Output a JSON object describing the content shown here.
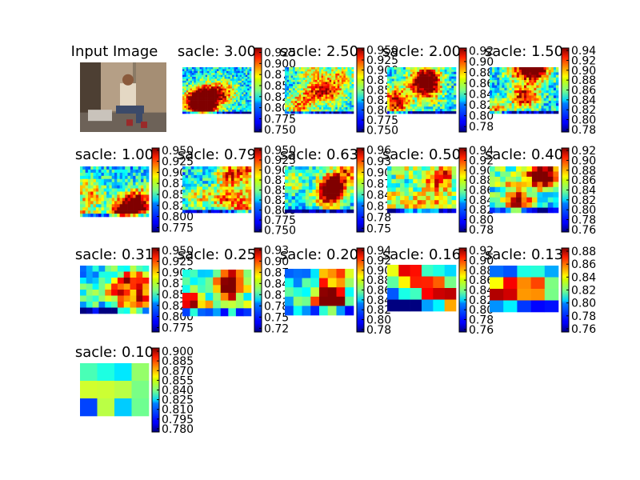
{
  "chart_data": [
    {
      "type": "image",
      "title": "Input Image"
    },
    {
      "type": "heatmap",
      "title": "sacle: 3.00",
      "colorbar_ticks": [
        "0.750",
        "0.775",
        "0.800",
        "0.825",
        "0.850",
        "0.875",
        "0.900",
        "0.925"
      ],
      "vmin": 0.745,
      "vmax": 0.935
    },
    {
      "type": "heatmap",
      "title": "sacle: 2.50",
      "colorbar_ticks": [
        "0.750",
        "0.775",
        "0.800",
        "0.825",
        "0.850",
        "0.875",
        "0.900",
        "0.925",
        "0.950"
      ],
      "vmin": 0.745,
      "vmax": 0.955
    },
    {
      "type": "heatmap",
      "title": "sacle: 2.00",
      "colorbar_ticks": [
        "0.78",
        "0.80",
        "0.82",
        "0.84",
        "0.86",
        "0.88",
        "0.90",
        "0.92"
      ],
      "vmin": 0.77,
      "vmax": 0.925
    },
    {
      "type": "heatmap",
      "title": "sacle: 1.50",
      "colorbar_ticks": [
        "0.78",
        "0.80",
        "0.82",
        "0.84",
        "0.86",
        "0.88",
        "0.90",
        "0.92",
        "0.94"
      ],
      "vmin": 0.775,
      "vmax": 0.945
    },
    {
      "type": "heatmap",
      "title": "sacle: 1.00",
      "colorbar_ticks": [
        "0.775",
        "0.800",
        "0.825",
        "0.850",
        "0.875",
        "0.900",
        "0.925",
        "0.950"
      ],
      "vmin": 0.765,
      "vmax": 0.955
    },
    {
      "type": "heatmap",
      "title": "sacle: 0.79",
      "colorbar_ticks": [
        "0.750",
        "0.775",
        "0.800",
        "0.825",
        "0.850",
        "0.875",
        "0.900",
        "0.925",
        "0.950"
      ],
      "vmin": 0.745,
      "vmax": 0.955
    },
    {
      "type": "heatmap",
      "title": "sacle: 0.63",
      "colorbar_ticks": [
        "0.75",
        "0.78",
        "0.81",
        "0.84",
        "0.87",
        "0.90",
        "0.93",
        "0.96"
      ],
      "vmin": 0.74,
      "vmax": 0.965
    },
    {
      "type": "heatmap",
      "title": "sacle: 0.50",
      "colorbar_ticks": [
        "0.78",
        "0.80",
        "0.82",
        "0.84",
        "0.86",
        "0.88",
        "0.90",
        "0.92",
        "0.94"
      ],
      "vmin": 0.775,
      "vmax": 0.945
    },
    {
      "type": "heatmap",
      "title": "sacle: 0.40",
      "colorbar_ticks": [
        "0.76",
        "0.78",
        "0.80",
        "0.82",
        "0.84",
        "0.86",
        "0.88",
        "0.90",
        "0.92"
      ],
      "vmin": 0.755,
      "vmax": 0.925
    },
    {
      "type": "heatmap",
      "title": "sacle: 0.31",
      "colorbar_ticks": [
        "0.775",
        "0.800",
        "0.825",
        "0.850",
        "0.875",
        "0.900",
        "0.925",
        "0.950"
      ],
      "vmin": 0.765,
      "vmax": 0.955
    },
    {
      "type": "heatmap",
      "title": "sacle: 0.25",
      "colorbar_ticks": [
        "0.72",
        "0.75",
        "0.78",
        "0.81",
        "0.84",
        "0.87",
        "0.90",
        "0.93"
      ],
      "vmin": 0.71,
      "vmax": 0.935
    },
    {
      "type": "heatmap",
      "title": "sacle: 0.20",
      "colorbar_ticks": [
        "0.78",
        "0.80",
        "0.82",
        "0.84",
        "0.86",
        "0.88",
        "0.90",
        "0.92",
        "0.94"
      ],
      "vmin": 0.775,
      "vmax": 0.945
    },
    {
      "type": "heatmap",
      "title": "sacle: 0.16",
      "colorbar_ticks": [
        "0.76",
        "0.78",
        "0.80",
        "0.82",
        "0.84",
        "0.86",
        "0.88",
        "0.90",
        "0.92"
      ],
      "vmin": 0.755,
      "vmax": 0.925
    },
    {
      "type": "heatmap",
      "title": "sacle: 0.13",
      "colorbar_ticks": [
        "0.76",
        "0.78",
        "0.80",
        "0.82",
        "0.84",
        "0.86",
        "0.88"
      ],
      "vmin": 0.755,
      "vmax": 0.885
    },
    {
      "type": "heatmap",
      "title": "sacle: 0.10",
      "colorbar_ticks": [
        "0.780",
        "0.795",
        "0.810",
        "0.825",
        "0.840",
        "0.855",
        "0.870",
        "0.885",
        "0.900"
      ],
      "vmin": 0.775,
      "vmax": 0.905
    }
  ]
}
